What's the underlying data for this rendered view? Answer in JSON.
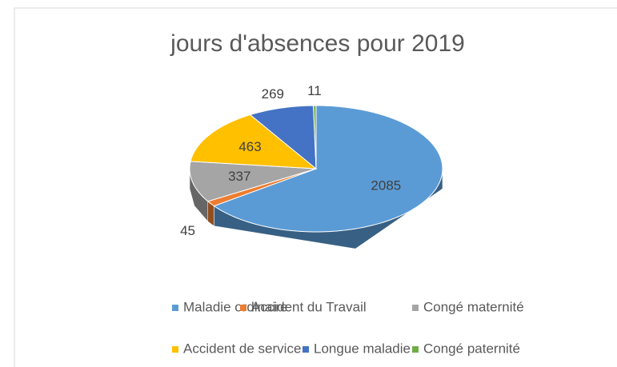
{
  "chart_data": {
    "type": "pie3d",
    "title": "jours d'absences pour 2019",
    "series": [
      {
        "name": "Maladie ordinaire",
        "color": "#5b9bd5",
        "values": [
          2085
        ]
      },
      {
        "name": "Accident du Travail",
        "color": "#ed7d31",
        "values": [
          45
        ]
      },
      {
        "name": "Congé maternité",
        "color": "#a5a5a5",
        "values": [
          337
        ]
      },
      {
        "name": "Accident de service",
        "color": "#ffc000",
        "values": [
          463
        ]
      },
      {
        "name": "Longue maladie",
        "color": "#4472c4",
        "values": [
          269
        ]
      },
      {
        "name": "Congé paternité",
        "color": "#70ad47",
        "values": [
          11
        ]
      }
    ],
    "legend": "bottom"
  }
}
